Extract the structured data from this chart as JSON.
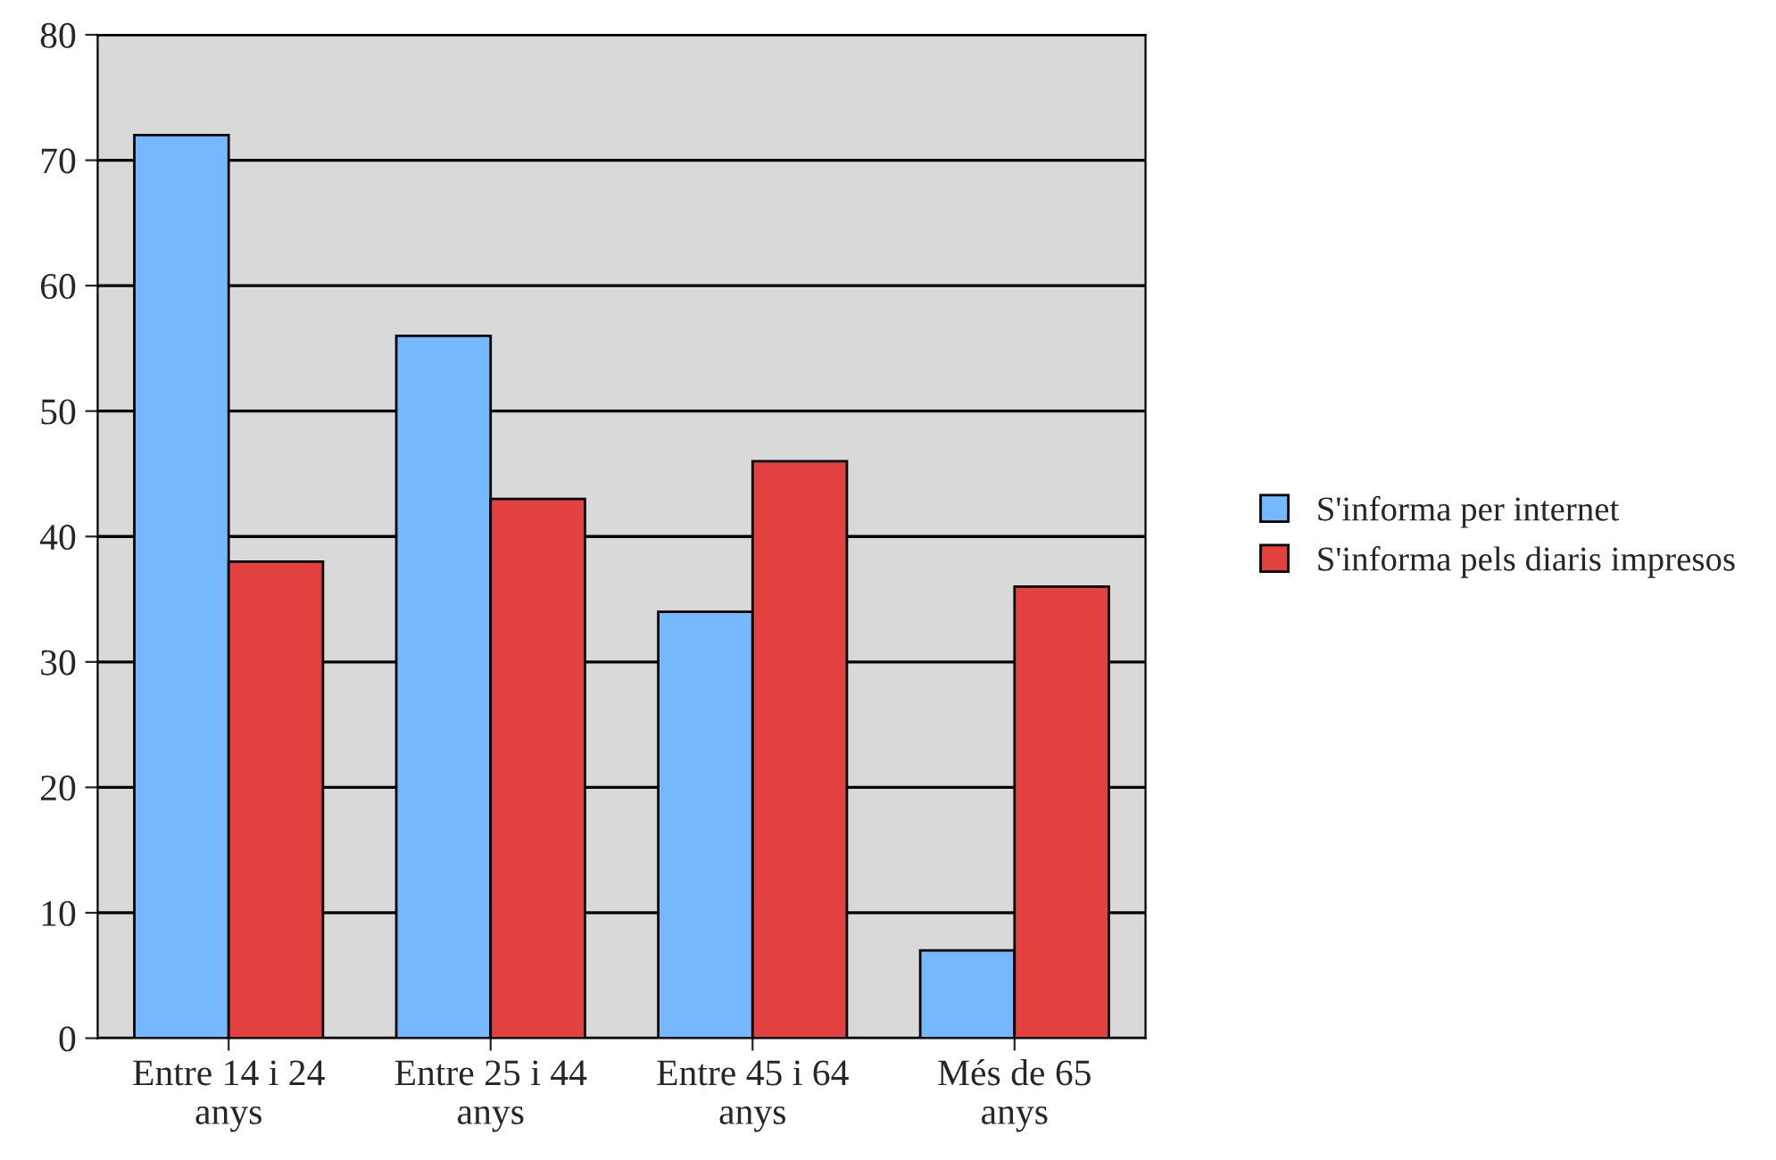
{
  "chart_data": {
    "type": "bar",
    "categories": [
      "Entre 14 i 24\nanys",
      "Entre 25 i 44\nanys",
      "Entre 45 i 64\nanys",
      "Més de 65\nanys"
    ],
    "series": [
      {
        "name": "S'informa per internet",
        "color": "#75b8ff",
        "values": [
          72,
          56,
          34,
          7
        ]
      },
      {
        "name": "S'informa pels diaris impresos",
        "color": "#e34040",
        "values": [
          38,
          43,
          46,
          36
        ]
      }
    ],
    "ylim": [
      0,
      80
    ],
    "yticks": [
      0,
      10,
      20,
      30,
      40,
      50,
      60,
      70,
      80
    ],
    "grid": "y",
    "legend": "right"
  }
}
